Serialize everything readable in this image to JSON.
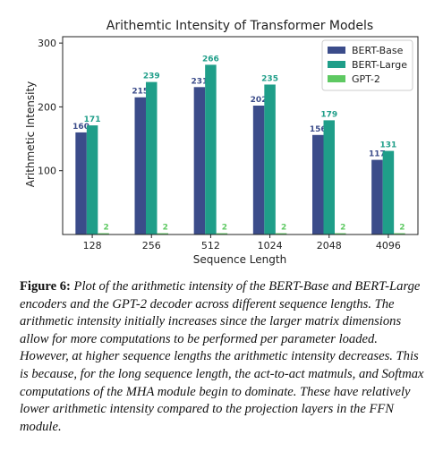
{
  "chart_data": {
    "type": "bar",
    "title": "Arithemtic Intensity of Transformer Models",
    "xlabel": "Sequence Length",
    "ylabel": "Arithmetic Intensity",
    "categories": [
      "128",
      "256",
      "512",
      "1024",
      "2048",
      "4096"
    ],
    "ylim": [
      0,
      310
    ],
    "yticks": [
      100,
      200,
      300
    ],
    "grid": false,
    "legend_position": "top-right",
    "series": [
      {
        "name": "BERT-Base",
        "color": "#3b4c8a",
        "values": [
          160,
          215,
          231,
          202,
          156,
          117
        ]
      },
      {
        "name": "BERT-Large",
        "color": "#1f9e89",
        "values": [
          171,
          239,
          266,
          235,
          179,
          131
        ]
      },
      {
        "name": "GPT-2",
        "color": "#5ec962",
        "values": [
          2,
          2,
          2,
          2,
          2,
          2
        ]
      }
    ]
  },
  "caption": {
    "label": "Figure 6:",
    "text": "Plot of the arithmetic intensity of the BERT-Base and BERT-Large encoders and the GPT-2 decoder across different sequence lengths. The arithmetic intensity initially increases since the larger matrix dimensions allow for more computations to be performed per parameter loaded. However, at higher sequence lengths the arithmetic intensity decreases. This is because, for the long sequence length, the act-to-act matmuls, and Softmax computations of the MHA module begin to dominate. These have relatively lower arithmetic intensity compared to the projection layers in the FFN module."
  }
}
